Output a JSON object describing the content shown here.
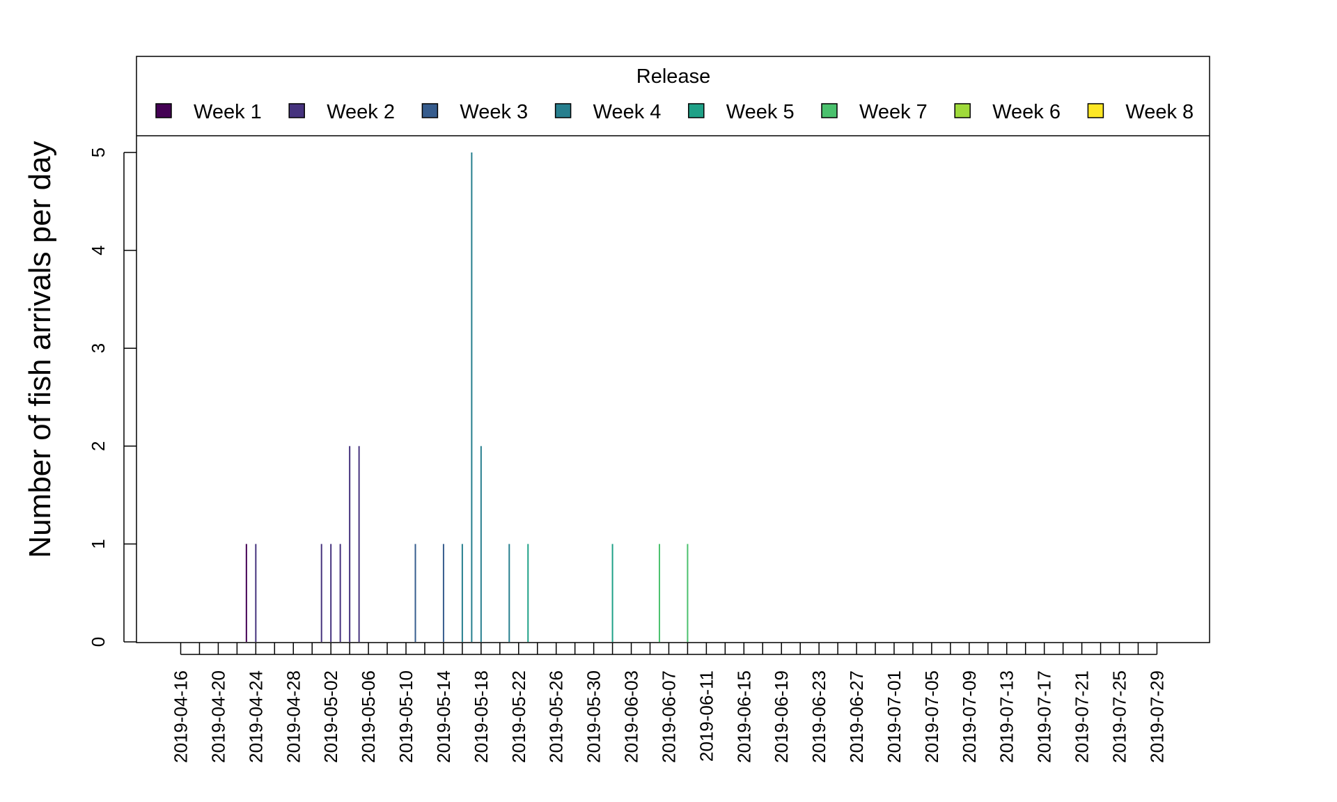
{
  "chart_data": {
    "type": "bar",
    "title": "",
    "xlabel": "",
    "ylabel": "Number of fish arrivals per day",
    "ylim": [
      0,
      5.9
    ],
    "y_ticks": [
      0,
      1,
      2,
      3,
      4,
      5
    ],
    "x_range": [
      "2019-04-11",
      "2019-08-07"
    ],
    "x_ticks": [
      "2019-04-16",
      "2019-04-18",
      "2019-04-20",
      "2019-04-22",
      "2019-04-24",
      "2019-04-26",
      "2019-04-28",
      "2019-04-30",
      "2019-05-02",
      "2019-05-04",
      "2019-05-06",
      "2019-05-08",
      "2019-05-10",
      "2019-05-12",
      "2019-05-14",
      "2019-05-16",
      "2019-05-18",
      "2019-05-20",
      "2019-05-22",
      "2019-05-24",
      "2019-05-26",
      "2019-05-28",
      "2019-05-30",
      "2019-06-01",
      "2019-06-03",
      "2019-06-05",
      "2019-06-07",
      "2019-06-09",
      "2019-06-11",
      "2019-06-13",
      "2019-06-15",
      "2019-06-17",
      "2019-06-19",
      "2019-06-21",
      "2019-06-23",
      "2019-06-25",
      "2019-06-27",
      "2019-06-29",
      "2019-07-01",
      "2019-07-03",
      "2019-07-05",
      "2019-07-07",
      "2019-07-09",
      "2019-07-11",
      "2019-07-13",
      "2019-07-15",
      "2019-07-17",
      "2019-07-19",
      "2019-07-21",
      "2019-07-23",
      "2019-07-25",
      "2019-07-27",
      "2019-07-29"
    ],
    "x_tick_labels": [
      "2019-04-16",
      "2019-04-20",
      "2019-04-24",
      "2019-04-28",
      "2019-05-02",
      "2019-05-06",
      "2019-05-10",
      "2019-05-14",
      "2019-05-18",
      "2019-05-22",
      "2019-05-26",
      "2019-05-30",
      "2019-06-03",
      "2019-06-07",
      "2019-06-11",
      "2019-06-15",
      "2019-06-19",
      "2019-06-23",
      "2019-06-27",
      "2019-07-01",
      "2019-07-05",
      "2019-07-09",
      "2019-07-13",
      "2019-07-17",
      "2019-07-21",
      "2019-07-25",
      "2019-07-29"
    ],
    "legend": {
      "title": "Release",
      "position": "top"
    },
    "grid": false,
    "series": [
      {
        "name": "Week 1",
        "color": "#440154",
        "points": [
          {
            "x": "2019-04-23",
            "y": 1
          }
        ]
      },
      {
        "name": "Week 2",
        "color": "#46337E",
        "points": [
          {
            "x": "2019-04-24",
            "y": 1
          },
          {
            "x": "2019-05-01",
            "y": 1
          },
          {
            "x": "2019-05-02",
            "y": 1
          },
          {
            "x": "2019-05-03",
            "y": 1
          },
          {
            "x": "2019-05-04",
            "y": 2
          },
          {
            "x": "2019-05-05",
            "y": 2
          }
        ]
      },
      {
        "name": "Week 3",
        "color": "#365C8D",
        "points": [
          {
            "x": "2019-05-11",
            "y": 1
          },
          {
            "x": "2019-05-14",
            "y": 1
          }
        ]
      },
      {
        "name": "Week 4",
        "color": "#277F8E",
        "points": [
          {
            "x": "2019-05-16",
            "y": 1
          },
          {
            "x": "2019-05-17",
            "y": 5
          },
          {
            "x": "2019-05-18",
            "y": 2
          },
          {
            "x": "2019-05-21",
            "y": 1
          }
        ]
      },
      {
        "name": "Week 5",
        "color": "#1FA187",
        "points": [
          {
            "x": "2019-05-23",
            "y": 1
          },
          {
            "x": "2019-06-01",
            "y": 1
          }
        ]
      },
      {
        "name": "Week 7",
        "color": "#4AC16D",
        "points": [
          {
            "x": "2019-06-06",
            "y": 1
          },
          {
            "x": "2019-06-09",
            "y": 1
          }
        ]
      },
      {
        "name": "Week 6",
        "color": "#9FDA3A",
        "points": []
      },
      {
        "name": "Week 8",
        "color": "#FDE725",
        "points": []
      }
    ]
  }
}
